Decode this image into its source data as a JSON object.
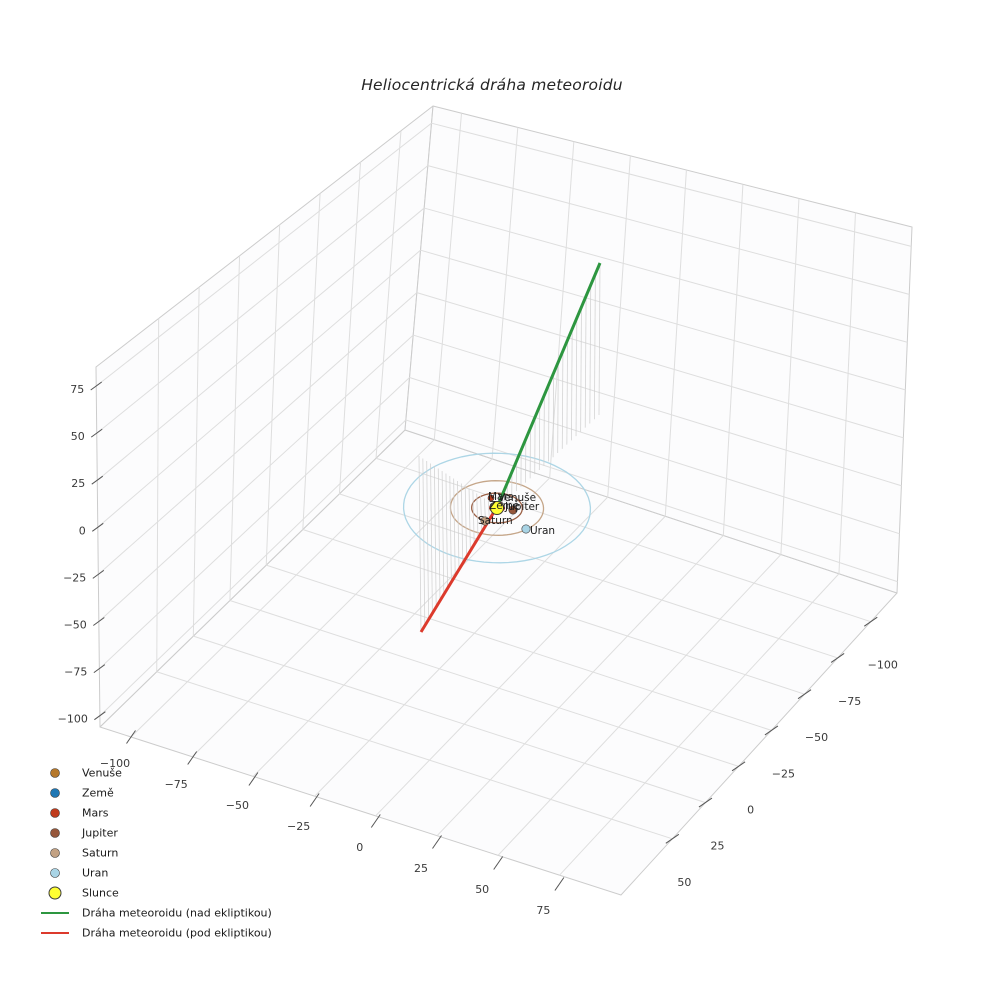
{
  "title": "Heliocentrická dráha meteoroidu",
  "chart_data": {
    "type": "line",
    "projection": "3d",
    "title": "Heliocentrická dráha meteoroidu",
    "axes": {
      "x_ticks": [
        -100,
        -75,
        -50,
        -25,
        0,
        25,
        50,
        75
      ],
      "y_ticks": [
        50,
        25,
        0,
        -25,
        -50,
        -75,
        -100
      ],
      "z_ticks": [
        75,
        50,
        25,
        0,
        -25,
        -50,
        -75,
        -100
      ],
      "grid": true
    },
    "meteoroid": {
      "above_label": "Dráha meteoroidu (nad ekliptikou)",
      "below_label": "Dráha meteoroidu (pod ekliptikou)",
      "above_color": "#2d9640",
      "below_color": "#dc3a2c",
      "start_xyz": [
        -34,
        -8,
        -91
      ],
      "end_xyz": [
        5,
        -64,
        84
      ],
      "stem_count_above": 22,
      "stem_count_below": 20,
      "stem_color": "#cfcfcf"
    },
    "sun": {
      "name": "Slunce",
      "color": "#ffff33",
      "edge_color": "#3a3a3a"
    },
    "planets": [
      {
        "name": "Venuše",
        "color": "#b5772a",
        "orbit_radius": 1.2,
        "dot_offset": [
          3,
          -4
        ],
        "label_offset": [
          1,
          -10
        ],
        "dot_r": 2.6
      },
      {
        "name": "Země",
        "color": "#1f77b4",
        "orbit_radius": 1.65,
        "dot_offset": [
          -4,
          -2
        ],
        "label_offset": [
          -8,
          -2
        ],
        "dot_r": 3
      },
      {
        "name": "Mars",
        "color": "#bf3b1d",
        "orbit_radius": 2.5,
        "dot_offset": [
          -6,
          -10
        ],
        "label_offset": [
          -9,
          -11
        ],
        "dot_r": 3
      },
      {
        "name": "Jupiter",
        "color": "#96573b",
        "orbit_radius": 8.6,
        "dot_offset": [
          16,
          2
        ],
        "label_offset": [
          8,
          -1
        ],
        "dot_r": 4.2
      },
      {
        "name": "Saturn",
        "color": "#c2a183",
        "orbit_radius": 15.8,
        "dot_offset": [
          -12,
          13
        ],
        "label_offset": [
          -19,
          13
        ],
        "dot_r": 4.2
      },
      {
        "name": "Uran",
        "color": "#a9d4e5",
        "orbit_radius": 31.7,
        "dot_offset": [
          29,
          21
        ],
        "label_offset": [
          33,
          23
        ],
        "dot_r": 4.2
      }
    ]
  },
  "legend": {
    "items": [
      {
        "label": "Venuše",
        "type": "dot",
        "color": "#b5772a"
      },
      {
        "label": "Země",
        "type": "dot",
        "color": "#1f77b4"
      },
      {
        "label": "Mars",
        "type": "dot",
        "color": "#bf3b1d"
      },
      {
        "label": "Jupiter",
        "type": "dot",
        "color": "#96573b"
      },
      {
        "label": "Saturn",
        "type": "dot",
        "color": "#c2a183"
      },
      {
        "label": "Uran",
        "type": "dot",
        "color": "#a9d4e5"
      },
      {
        "label": "Slunce",
        "type": "dot-large",
        "color": "#ffff33"
      },
      {
        "label": "Dráha meteoroidu (nad ekliptikou)",
        "type": "line",
        "color": "#2d9640"
      },
      {
        "label": "Dráha meteoroidu (pod ekliptikou)",
        "type": "line",
        "color": "#dc3a2c"
      }
    ]
  }
}
